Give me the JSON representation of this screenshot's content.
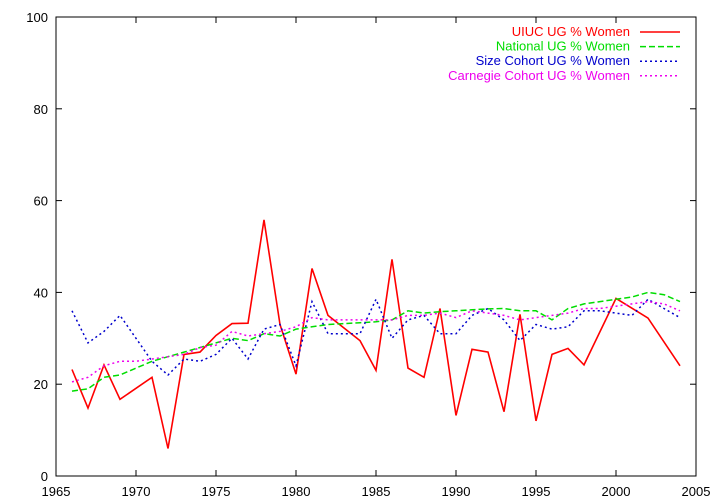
{
  "chart_data": {
    "type": "line",
    "title": "",
    "xlabel": "",
    "ylabel": "",
    "xlim": [
      1965,
      2005
    ],
    "ylim": [
      0,
      100
    ],
    "xticks": [
      1965,
      1970,
      1975,
      1980,
      1985,
      1990,
      1995,
      2000,
      2005
    ],
    "yticks": [
      0,
      20,
      40,
      60,
      80,
      100
    ],
    "grid": false,
    "legend_position": "top-right",
    "series": [
      {
        "name": "UIUC UG % Women",
        "color": "#ff0000",
        "style": "solid",
        "x": [
          1966,
          1967,
          1968,
          1969,
          1971,
          1972,
          1973,
          1974,
          1975,
          1976,
          1977,
          1978,
          1979,
          1980,
          1981,
          1982,
          1984,
          1985,
          1986,
          1987,
          1988,
          1989,
          1990,
          1991,
          1992,
          1993,
          1994,
          1995,
          1996,
          1997,
          1998,
          2000,
          2002,
          2004
        ],
        "y": [
          23.2,
          14.8,
          24.2,
          16.7,
          21.5,
          6.0,
          26.5,
          27.0,
          30.6,
          33.2,
          33.3,
          55.8,
          33.0,
          22.2,
          45.2,
          35.0,
          29.5,
          23.0,
          47.2,
          23.5,
          21.5,
          36.5,
          13.2,
          27.6,
          27.0,
          14.0,
          35.2,
          12.0,
          26.5,
          27.8,
          24.2,
          38.7,
          34.4,
          24.0
        ]
      },
      {
        "name": "National UG % Women",
        "color": "#00dd00",
        "style": "dashed",
        "x": [
          1966,
          1967,
          1968,
          1969,
          1970,
          1971,
          1972,
          1973,
          1974,
          1975,
          1976,
          1977,
          1978,
          1979,
          1980,
          1981,
          1982,
          1983,
          1984,
          1985,
          1986,
          1987,
          1988,
          1989,
          1990,
          1991,
          1992,
          1993,
          1994,
          1995,
          1996,
          1997,
          1998,
          1999,
          2000,
          2001,
          2002,
          2003,
          2004
        ],
        "y": [
          18.5,
          19.0,
          21.5,
          22.0,
          23.5,
          25.0,
          26.0,
          27.0,
          28.0,
          29.0,
          30.0,
          29.5,
          31.0,
          30.5,
          32.0,
          32.5,
          33.0,
          33.2,
          33.4,
          33.6,
          34.0,
          36.0,
          35.5,
          35.8,
          36.0,
          36.2,
          36.4,
          36.5,
          36.0,
          36.0,
          34.0,
          36.5,
          37.5,
          38.0,
          38.5,
          39.0,
          40.0,
          39.5,
          38.0
        ]
      },
      {
        "name": "Size Cohort UG % Women",
        "color": "#0000cc",
        "style": "dotted",
        "x": [
          1966,
          1967,
          1968,
          1969,
          1970,
          1971,
          1972,
          1973,
          1974,
          1975,
          1976,
          1977,
          1978,
          1979,
          1980,
          1981,
          1982,
          1983,
          1984,
          1985,
          1986,
          1987,
          1988,
          1989,
          1990,
          1991,
          1992,
          1993,
          1994,
          1995,
          1996,
          1997,
          1998,
          1999,
          2000,
          2001,
          2002,
          2003,
          2004
        ],
        "y": [
          36.0,
          29.0,
          31.5,
          35.0,
          30.0,
          25.0,
          22.0,
          25.5,
          25.0,
          26.5,
          30.0,
          25.5,
          32.0,
          33.0,
          24.0,
          38.0,
          31.0,
          31.0,
          31.0,
          38.5,
          30.0,
          34.0,
          35.0,
          31.0,
          31.0,
          35.0,
          36.5,
          34.0,
          29.5,
          33.0,
          32.0,
          32.5,
          36.0,
          36.0,
          35.5,
          35.0,
          38.5,
          36.5,
          34.5
        ]
      },
      {
        "name": "Carnegie Cohort UG % Women",
        "color": "#ee00ee",
        "style": "dotted",
        "x": [
          1966,
          1967,
          1968,
          1969,
          1970,
          1971,
          1972,
          1973,
          1974,
          1975,
          1976,
          1977,
          1978,
          1979,
          1980,
          1981,
          1982,
          1983,
          1984,
          1985,
          1986,
          1987,
          1988,
          1989,
          1990,
          1991,
          1992,
          1993,
          1994,
          1995,
          1996,
          1997,
          1998,
          1999,
          2000,
          2001,
          2002,
          2003,
          2004
        ],
        "y": [
          20.5,
          21.5,
          24.0,
          25.0,
          25.0,
          25.5,
          26.0,
          26.5,
          28.0,
          28.5,
          31.5,
          30.5,
          31.0,
          31.5,
          32.5,
          34.5,
          34.0,
          34.0,
          34.0,
          34.0,
          34.0,
          35.0,
          35.0,
          35.5,
          34.5,
          36.0,
          35.5,
          35.0,
          34.0,
          34.5,
          35.0,
          35.5,
          36.5,
          36.5,
          37.0,
          37.5,
          38.0,
          37.5,
          36.0
        ]
      }
    ]
  }
}
